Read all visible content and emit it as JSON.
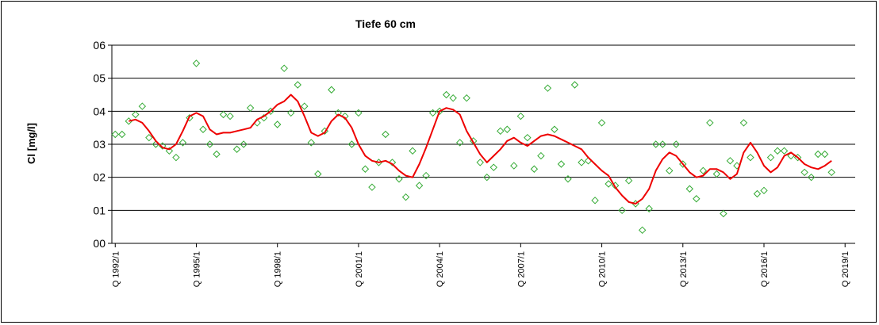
{
  "chart_data": {
    "type": "scatter",
    "title": "Tiefe  60 cm",
    "ylabel": "Cl [mg/l]",
    "xlabel": "",
    "ylim": [
      0,
      0.6
    ],
    "yticks": [
      "00",
      "01",
      "02",
      "03",
      "04",
      "05",
      "06"
    ],
    "x_categories_count": 110,
    "xtick_labels": [
      {
        "index": 0,
        "label": "Q 1992/1"
      },
      {
        "index": 12,
        "label": "Q 1995/1"
      },
      {
        "index": 24,
        "label": "Q 1998/1"
      },
      {
        "index": 36,
        "label": "Q 2001/1"
      },
      {
        "index": 48,
        "label": "Q 2004/1"
      },
      {
        "index": 60,
        "label": "Q 2007/1"
      },
      {
        "index": 72,
        "label": "Q 2010/1"
      },
      {
        "index": 84,
        "label": "Q 2013/1"
      },
      {
        "index": 96,
        "label": "Q 2016/1"
      },
      {
        "index": 108,
        "label": "Q 2019/1"
      }
    ],
    "grid": "horizontal",
    "series": [
      {
        "kind": "points",
        "color": "#33aa33",
        "marker": "diamond-open",
        "points": [
          [
            0,
            0.33
          ],
          [
            1,
            0.33
          ],
          [
            2,
            0.37
          ],
          [
            3,
            0.39
          ],
          [
            4,
            0.415
          ],
          [
            5,
            0.32
          ],
          [
            6,
            0.3
          ],
          [
            7,
            0.295
          ],
          [
            8,
            0.28
          ],
          [
            9,
            0.26
          ],
          [
            10,
            0.305
          ],
          [
            11,
            0.38
          ],
          [
            12,
            0.545
          ],
          [
            13,
            0.345
          ],
          [
            14,
            0.3
          ],
          [
            15,
            0.27
          ],
          [
            16,
            0.39
          ],
          [
            17,
            0.385
          ],
          [
            18,
            0.285
          ],
          [
            19,
            0.3
          ],
          [
            20,
            0.41
          ],
          [
            21,
            0.365
          ],
          [
            22,
            0.38
          ],
          [
            23,
            0.4
          ],
          [
            24,
            0.36
          ],
          [
            25,
            0.53
          ],
          [
            26,
            0.395
          ],
          [
            27,
            0.48
          ],
          [
            28,
            0.415
          ],
          [
            29,
            0.305
          ],
          [
            30,
            0.21
          ],
          [
            31,
            0.34
          ],
          [
            32,
            0.465
          ],
          [
            33,
            0.395
          ],
          [
            34,
            0.385
          ],
          [
            35,
            0.3
          ],
          [
            36,
            0.395
          ],
          [
            37,
            0.225
          ],
          [
            38,
            0.17
          ],
          [
            39,
            0.245
          ],
          [
            40,
            0.33
          ],
          [
            41,
            0.245
          ],
          [
            42,
            0.195
          ],
          [
            43,
            0.14
          ],
          [
            44,
            0.28
          ],
          [
            45,
            0.175
          ],
          [
            46,
            0.205
          ],
          [
            47,
            0.395
          ],
          [
            48,
            0.4
          ],
          [
            49,
            0.45
          ],
          [
            50,
            0.44
          ],
          [
            51,
            0.305
          ],
          [
            52,
            0.44
          ],
          [
            53,
            0.31
          ],
          [
            54,
            0.245
          ],
          [
            55,
            0.2
          ],
          [
            56,
            0.23
          ],
          [
            57,
            0.34
          ],
          [
            58,
            0.345
          ],
          [
            59,
            0.235
          ],
          [
            60,
            0.385
          ],
          [
            61,
            0.32
          ],
          [
            62,
            0.225
          ],
          [
            63,
            0.265
          ],
          [
            64,
            0.47
          ],
          [
            65,
            0.345
          ],
          [
            66,
            0.24
          ],
          [
            67,
            0.195
          ],
          [
            68,
            0.48
          ],
          [
            69,
            0.245
          ],
          [
            70,
            0.25
          ],
          [
            71,
            0.13
          ],
          [
            72,
            0.365
          ],
          [
            73,
            0.18
          ],
          [
            74,
            0.175
          ],
          [
            75,
            0.1
          ],
          [
            76,
            0.19
          ],
          [
            77,
            0.12
          ],
          [
            78,
            0.04
          ],
          [
            79,
            0.105
          ],
          [
            80,
            0.3
          ],
          [
            81,
            0.3
          ],
          [
            82,
            0.22
          ],
          [
            83,
            0.3
          ],
          [
            84,
            0.24
          ],
          [
            85,
            0.165
          ],
          [
            86,
            0.135
          ],
          [
            87,
            0.22
          ],
          [
            88,
            0.365
          ],
          [
            89,
            0.21
          ],
          [
            90,
            0.09
          ],
          [
            91,
            0.25
          ],
          [
            92,
            0.235
          ],
          [
            93,
            0.365
          ],
          [
            94,
            0.26
          ],
          [
            95,
            0.15
          ],
          [
            96,
            0.16
          ],
          [
            97,
            0.26
          ],
          [
            98,
            0.28
          ],
          [
            99,
            0.28
          ],
          [
            100,
            0.265
          ],
          [
            101,
            0.26
          ],
          [
            102,
            0.215
          ],
          [
            103,
            0.2
          ],
          [
            104,
            0.27
          ],
          [
            105,
            0.27
          ],
          [
            106,
            0.215
          ]
        ]
      },
      {
        "kind": "line",
        "color": "#ee0000",
        "points": [
          [
            2,
            0.37
          ],
          [
            3,
            0.375
          ],
          [
            4,
            0.365
          ],
          [
            5,
            0.34
          ],
          [
            6,
            0.31
          ],
          [
            7,
            0.29
          ],
          [
            8,
            0.285
          ],
          [
            9,
            0.3
          ],
          [
            10,
            0.34
          ],
          [
            11,
            0.385
          ],
          [
            12,
            0.395
          ],
          [
            13,
            0.385
          ],
          [
            14,
            0.345
          ],
          [
            15,
            0.33
          ],
          [
            16,
            0.335
          ],
          [
            17,
            0.335
          ],
          [
            18,
            0.34
          ],
          [
            19,
            0.345
          ],
          [
            20,
            0.35
          ],
          [
            21,
            0.375
          ],
          [
            22,
            0.385
          ],
          [
            23,
            0.4
          ],
          [
            24,
            0.42
          ],
          [
            25,
            0.43
          ],
          [
            26,
            0.45
          ],
          [
            27,
            0.43
          ],
          [
            28,
            0.385
          ],
          [
            29,
            0.335
          ],
          [
            30,
            0.325
          ],
          [
            31,
            0.335
          ],
          [
            32,
            0.37
          ],
          [
            33,
            0.39
          ],
          [
            34,
            0.38
          ],
          [
            35,
            0.35
          ],
          [
            36,
            0.3
          ],
          [
            37,
            0.265
          ],
          [
            38,
            0.25
          ],
          [
            39,
            0.245
          ],
          [
            40,
            0.25
          ],
          [
            41,
            0.24
          ],
          [
            42,
            0.22
          ],
          [
            43,
            0.205
          ],
          [
            44,
            0.2
          ],
          [
            45,
            0.24
          ],
          [
            46,
            0.29
          ],
          [
            47,
            0.345
          ],
          [
            48,
            0.4
          ],
          [
            49,
            0.41
          ],
          [
            50,
            0.405
          ],
          [
            51,
            0.39
          ],
          [
            52,
            0.34
          ],
          [
            53,
            0.305
          ],
          [
            54,
            0.27
          ],
          [
            55,
            0.245
          ],
          [
            56,
            0.265
          ],
          [
            57,
            0.285
          ],
          [
            58,
            0.31
          ],
          [
            59,
            0.32
          ],
          [
            60,
            0.305
          ],
          [
            61,
            0.295
          ],
          [
            62,
            0.31
          ],
          [
            63,
            0.325
          ],
          [
            64,
            0.33
          ],
          [
            65,
            0.325
          ],
          [
            66,
            0.315
          ],
          [
            67,
            0.305
          ],
          [
            68,
            0.295
          ],
          [
            69,
            0.285
          ],
          [
            70,
            0.26
          ],
          [
            71,
            0.24
          ],
          [
            72,
            0.22
          ],
          [
            73,
            0.205
          ],
          [
            74,
            0.17
          ],
          [
            75,
            0.145
          ],
          [
            76,
            0.125
          ],
          [
            77,
            0.12
          ],
          [
            78,
            0.135
          ],
          [
            79,
            0.165
          ],
          [
            80,
            0.22
          ],
          [
            81,
            0.255
          ],
          [
            82,
            0.275
          ],
          [
            83,
            0.265
          ],
          [
            84,
            0.24
          ],
          [
            85,
            0.215
          ],
          [
            86,
            0.2
          ],
          [
            87,
            0.205
          ],
          [
            88,
            0.225
          ],
          [
            89,
            0.225
          ],
          [
            90,
            0.215
          ],
          [
            91,
            0.195
          ],
          [
            92,
            0.21
          ],
          [
            93,
            0.275
          ],
          [
            94,
            0.305
          ],
          [
            95,
            0.275
          ],
          [
            96,
            0.235
          ],
          [
            97,
            0.215
          ],
          [
            98,
            0.23
          ],
          [
            99,
            0.265
          ],
          [
            100,
            0.275
          ],
          [
            101,
            0.26
          ],
          [
            102,
            0.24
          ],
          [
            103,
            0.23
          ],
          [
            104,
            0.225
          ],
          [
            105,
            0.235
          ],
          [
            106,
            0.25
          ]
        ]
      }
    ]
  }
}
